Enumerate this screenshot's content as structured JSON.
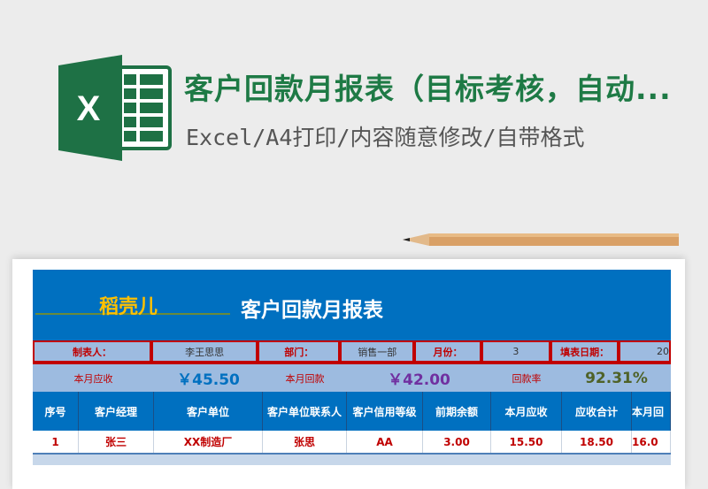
{
  "banner": {
    "title": "客户回款月报表（目标考核，自动...",
    "subtitle": "Excel/A4打印/内容随意修改/自带格式",
    "logo_letter": "X",
    "brand_color": "#1e7a45"
  },
  "sheet": {
    "brand": "稻壳儿",
    "title": "客户回款月报表",
    "info": [
      {
        "label": "制表人：",
        "value": "李王思思"
      },
      {
        "label": "部门：",
        "value": "销售一部"
      },
      {
        "label": "月份：",
        "value": "3"
      },
      {
        "label": "填表日期：",
        "value": "20"
      }
    ],
    "summary": {
      "receivable_label": "本月应收",
      "receivable": "￥45.50",
      "received_label": "本月回款",
      "received": "￥42.00",
      "rate_label": "回款率",
      "rate": "92.31%"
    },
    "columns": [
      "序号",
      "客户经理",
      "客户单位",
      "客户单位联系人",
      "客户信用等级",
      "前期余额",
      "本月应收",
      "应收合计",
      "本月回"
    ],
    "rows": [
      [
        "1",
        "张三",
        "XX制造厂",
        "张思",
        "AA",
        "3.00",
        "15.50",
        "18.50",
        "16.0"
      ]
    ],
    "colors": {
      "header": "#0070c0",
      "label": "#c00000",
      "receivable": "#0070c0",
      "received": "#7030a0",
      "rate": "#4f6228"
    }
  }
}
